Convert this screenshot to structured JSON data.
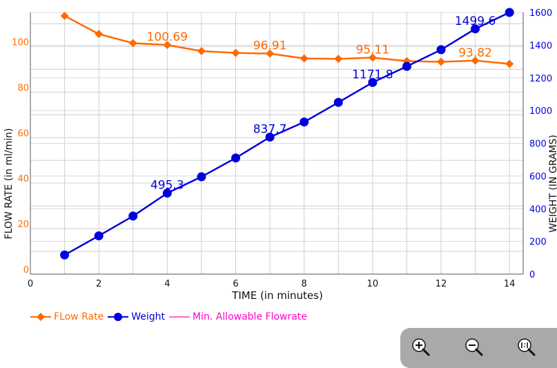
{
  "chart_data": {
    "type": "line",
    "xlabel": "TIME (in minutes)",
    "ylabel_left": "FLOW RATE (in ml/min)",
    "ylabel_right": "WEIGHT (IN GRAMS)",
    "xlim": [
      0,
      14.4
    ],
    "ylim_left": [
      0,
      115
    ],
    "ylim_right": [
      0,
      1600
    ],
    "x_ticks": [
      0,
      2,
      4,
      6,
      8,
      10,
      12,
      14
    ],
    "y_left_ticks": [
      0,
      20,
      40,
      60,
      80,
      100
    ],
    "y_right_ticks": [
      0,
      200,
      400,
      600,
      800,
      1000,
      1200,
      1400,
      1600
    ],
    "grid": true,
    "legend_position": "bottom-left",
    "series": [
      {
        "name": "FLow Rate",
        "axis": "left",
        "color": "#ff6a00",
        "marker": "diamond",
        "x": [
          1,
          2,
          3,
          4,
          5,
          6,
          7,
          8,
          9,
          10,
          11,
          12,
          13,
          14
        ],
        "values": [
          113.5,
          105.5,
          101.5,
          100.69,
          98.0,
          97.2,
          96.91,
          94.8,
          94.6,
          95.11,
          93.6,
          93.3,
          93.82,
          92.4
        ],
        "labels": [
          {
            "x": 4,
            "text": "100.69"
          },
          {
            "x": 7,
            "text": "96.91"
          },
          {
            "x": 10,
            "text": "95.11"
          },
          {
            "x": 13,
            "text": "93.82"
          }
        ]
      },
      {
        "name": "Weight",
        "axis": "right",
        "color": "#0000dd",
        "marker": "circle",
        "x": [
          1,
          2,
          3,
          4,
          5,
          6,
          7,
          8,
          9,
          10,
          11,
          12,
          13,
          14
        ],
        "values": [
          117,
          234,
          355,
          495.3,
          595,
          710,
          837.7,
          930,
          1050,
          1171.8,
          1270,
          1372,
          1499.6,
          1600
        ],
        "labels": [
          {
            "x": 4,
            "text": "495.3"
          },
          {
            "x": 7,
            "text": "837.7"
          },
          {
            "x": 10,
            "text": "1171.8"
          },
          {
            "x": 13,
            "text": "1499.6"
          }
        ]
      },
      {
        "name": "Min. Allowable Flowrate",
        "axis": "left",
        "color": "#ff33cc",
        "marker": "none",
        "x": [],
        "values": []
      }
    ]
  },
  "zoom_controls": {
    "zoom_in_icon": "zoom-in-icon",
    "zoom_out_icon": "zoom-out-icon",
    "reset_zoom_icon": "zoom-reset-icon"
  }
}
